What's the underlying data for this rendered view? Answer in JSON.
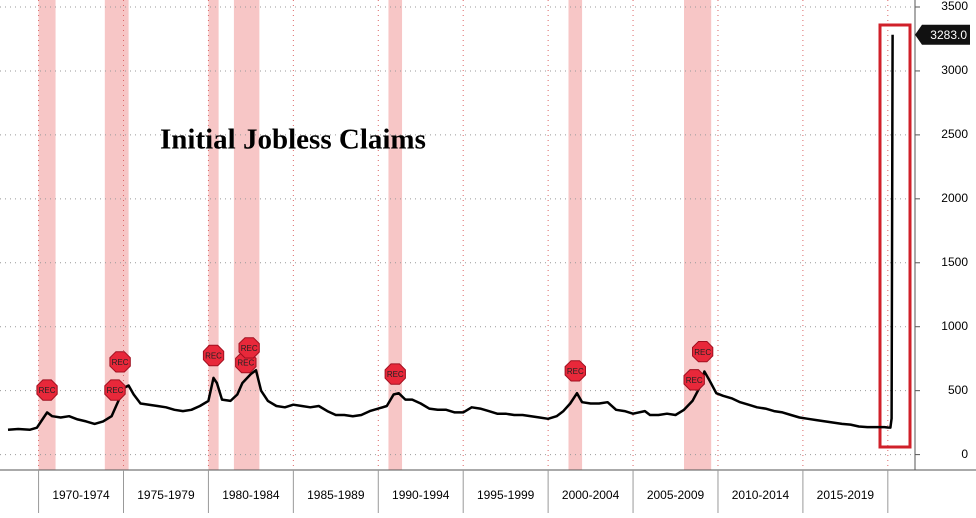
{
  "chart_data": {
    "type": "line",
    "title": "Initial Jobless Claims",
    "x": [
      1968.2,
      1968.8,
      1969.5,
      1969.9,
      1970.3,
      1970.5,
      1970.8,
      1971.3,
      1971.8,
      1972.3,
      1972.8,
      1973.3,
      1973.8,
      1974.3,
      1974.7,
      1975.0,
      1975.3,
      1975.6,
      1976.0,
      1976.5,
      1977.0,
      1977.5,
      1978.0,
      1978.5,
      1979.0,
      1979.5,
      1980.0,
      1980.3,
      1980.5,
      1980.8,
      1981.3,
      1981.7,
      1982.0,
      1982.5,
      1982.8,
      1983.1,
      1983.5,
      1984.0,
      1984.5,
      1985.0,
      1985.5,
      1986.0,
      1986.5,
      1987.0,
      1987.5,
      1988.0,
      1988.5,
      1989.0,
      1989.5,
      1990.0,
      1990.5,
      1990.9,
      1991.2,
      1991.6,
      1992.0,
      1992.5,
      1993.0,
      1993.5,
      1994.0,
      1994.5,
      1995.0,
      1995.5,
      1996.0,
      1996.5,
      1997.0,
      1997.5,
      1998.0,
      1998.5,
      1999.0,
      1999.5,
      2000.0,
      2000.5,
      2000.9,
      2001.3,
      2001.7,
      2002.0,
      2002.5,
      2003.0,
      2003.5,
      2004.0,
      2004.5,
      2005.0,
      2005.7,
      2006.0,
      2006.5,
      2007.0,
      2007.5,
      2008.0,
      2008.5,
      2008.9,
      2009.2,
      2009.5,
      2009.9,
      2010.3,
      2010.8,
      2011.3,
      2011.8,
      2012.3,
      2012.8,
      2013.3,
      2013.8,
      2014.3,
      2014.8,
      2015.3,
      2015.8,
      2016.3,
      2016.8,
      2017.3,
      2017.8,
      2018.3,
      2018.8,
      2019.3,
      2019.8,
      2020.0,
      2020.15,
      2020.22,
      2020.28
    ],
    "values": [
      195,
      200,
      195,
      210,
      290,
      330,
      300,
      290,
      300,
      275,
      260,
      240,
      260,
      300,
      420,
      520,
      540,
      470,
      400,
      390,
      380,
      370,
      350,
      340,
      350,
      380,
      420,
      600,
      560,
      430,
      420,
      470,
      560,
      630,
      660,
      500,
      420,
      380,
      370,
      390,
      380,
      370,
      380,
      340,
      310,
      310,
      300,
      310,
      340,
      360,
      380,
      470,
      480,
      430,
      430,
      400,
      360,
      350,
      350,
      330,
      330,
      370,
      360,
      340,
      320,
      320,
      310,
      310,
      300,
      290,
      280,
      300,
      340,
      400,
      480,
      410,
      400,
      400,
      410,
      350,
      340,
      320,
      340,
      310,
      310,
      320,
      310,
      350,
      420,
      520,
      650,
      580,
      480,
      460,
      440,
      410,
      390,
      370,
      360,
      340,
      330,
      310,
      290,
      280,
      270,
      260,
      250,
      240,
      235,
      220,
      215,
      215,
      215,
      212,
      211,
      282,
      3283
    ],
    "color": "#000000",
    "value_label": {
      "value": 3283,
      "label": "3283.0"
    },
    "recessions": [
      [
        1970.0,
        1971.0
      ],
      [
        1973.9,
        1975.3
      ],
      [
        1980.0,
        1980.6
      ],
      [
        1981.5,
        1983.0
      ],
      [
        1990.6,
        1991.4
      ],
      [
        2001.2,
        2002.0
      ],
      [
        2008.0,
        2009.6
      ]
    ],
    "recession_color": "#f7c6c6",
    "rec_markers": [
      {
        "label": "REC",
        "x": 1970.5,
        "y": 505
      },
      {
        "label": "REC",
        "x": 1974.5,
        "y": 505
      },
      {
        "label": "REC",
        "x": 1974.8,
        "y": 725
      },
      {
        "label": "REC",
        "x": 1980.3,
        "y": 775
      },
      {
        "label": "REC",
        "x": 1982.2,
        "y": 720
      },
      {
        "label": "REC",
        "x": 1982.4,
        "y": 835
      },
      {
        "label": "REC",
        "x": 1991.0,
        "y": 630
      },
      {
        "label": "REC",
        "x": 2001.6,
        "y": 655
      },
      {
        "label": "REC",
        "x": 2008.6,
        "y": 585
      },
      {
        "label": "REC",
        "x": 2009.1,
        "y": 805
      }
    ],
    "xlim": [
      1968.2,
      2021.6
    ],
    "xticks": [
      1970,
      1975,
      1980,
      1985,
      1990,
      1995,
      2000,
      2005,
      2010,
      2015,
      2020
    ],
    "x_period_labels": [
      "1970-1974",
      "1975-1979",
      "1980-1984",
      "1985-1989",
      "1990-1994",
      "1995-1999",
      "2000-2004",
      "2005-2009",
      "2010-2014",
      "2015-2019"
    ],
    "ylim": [
      -50,
      3500
    ],
    "yticks": [
      0,
      500,
      1000,
      1500,
      2000,
      2500,
      3000,
      3500
    ],
    "grid": true
  }
}
